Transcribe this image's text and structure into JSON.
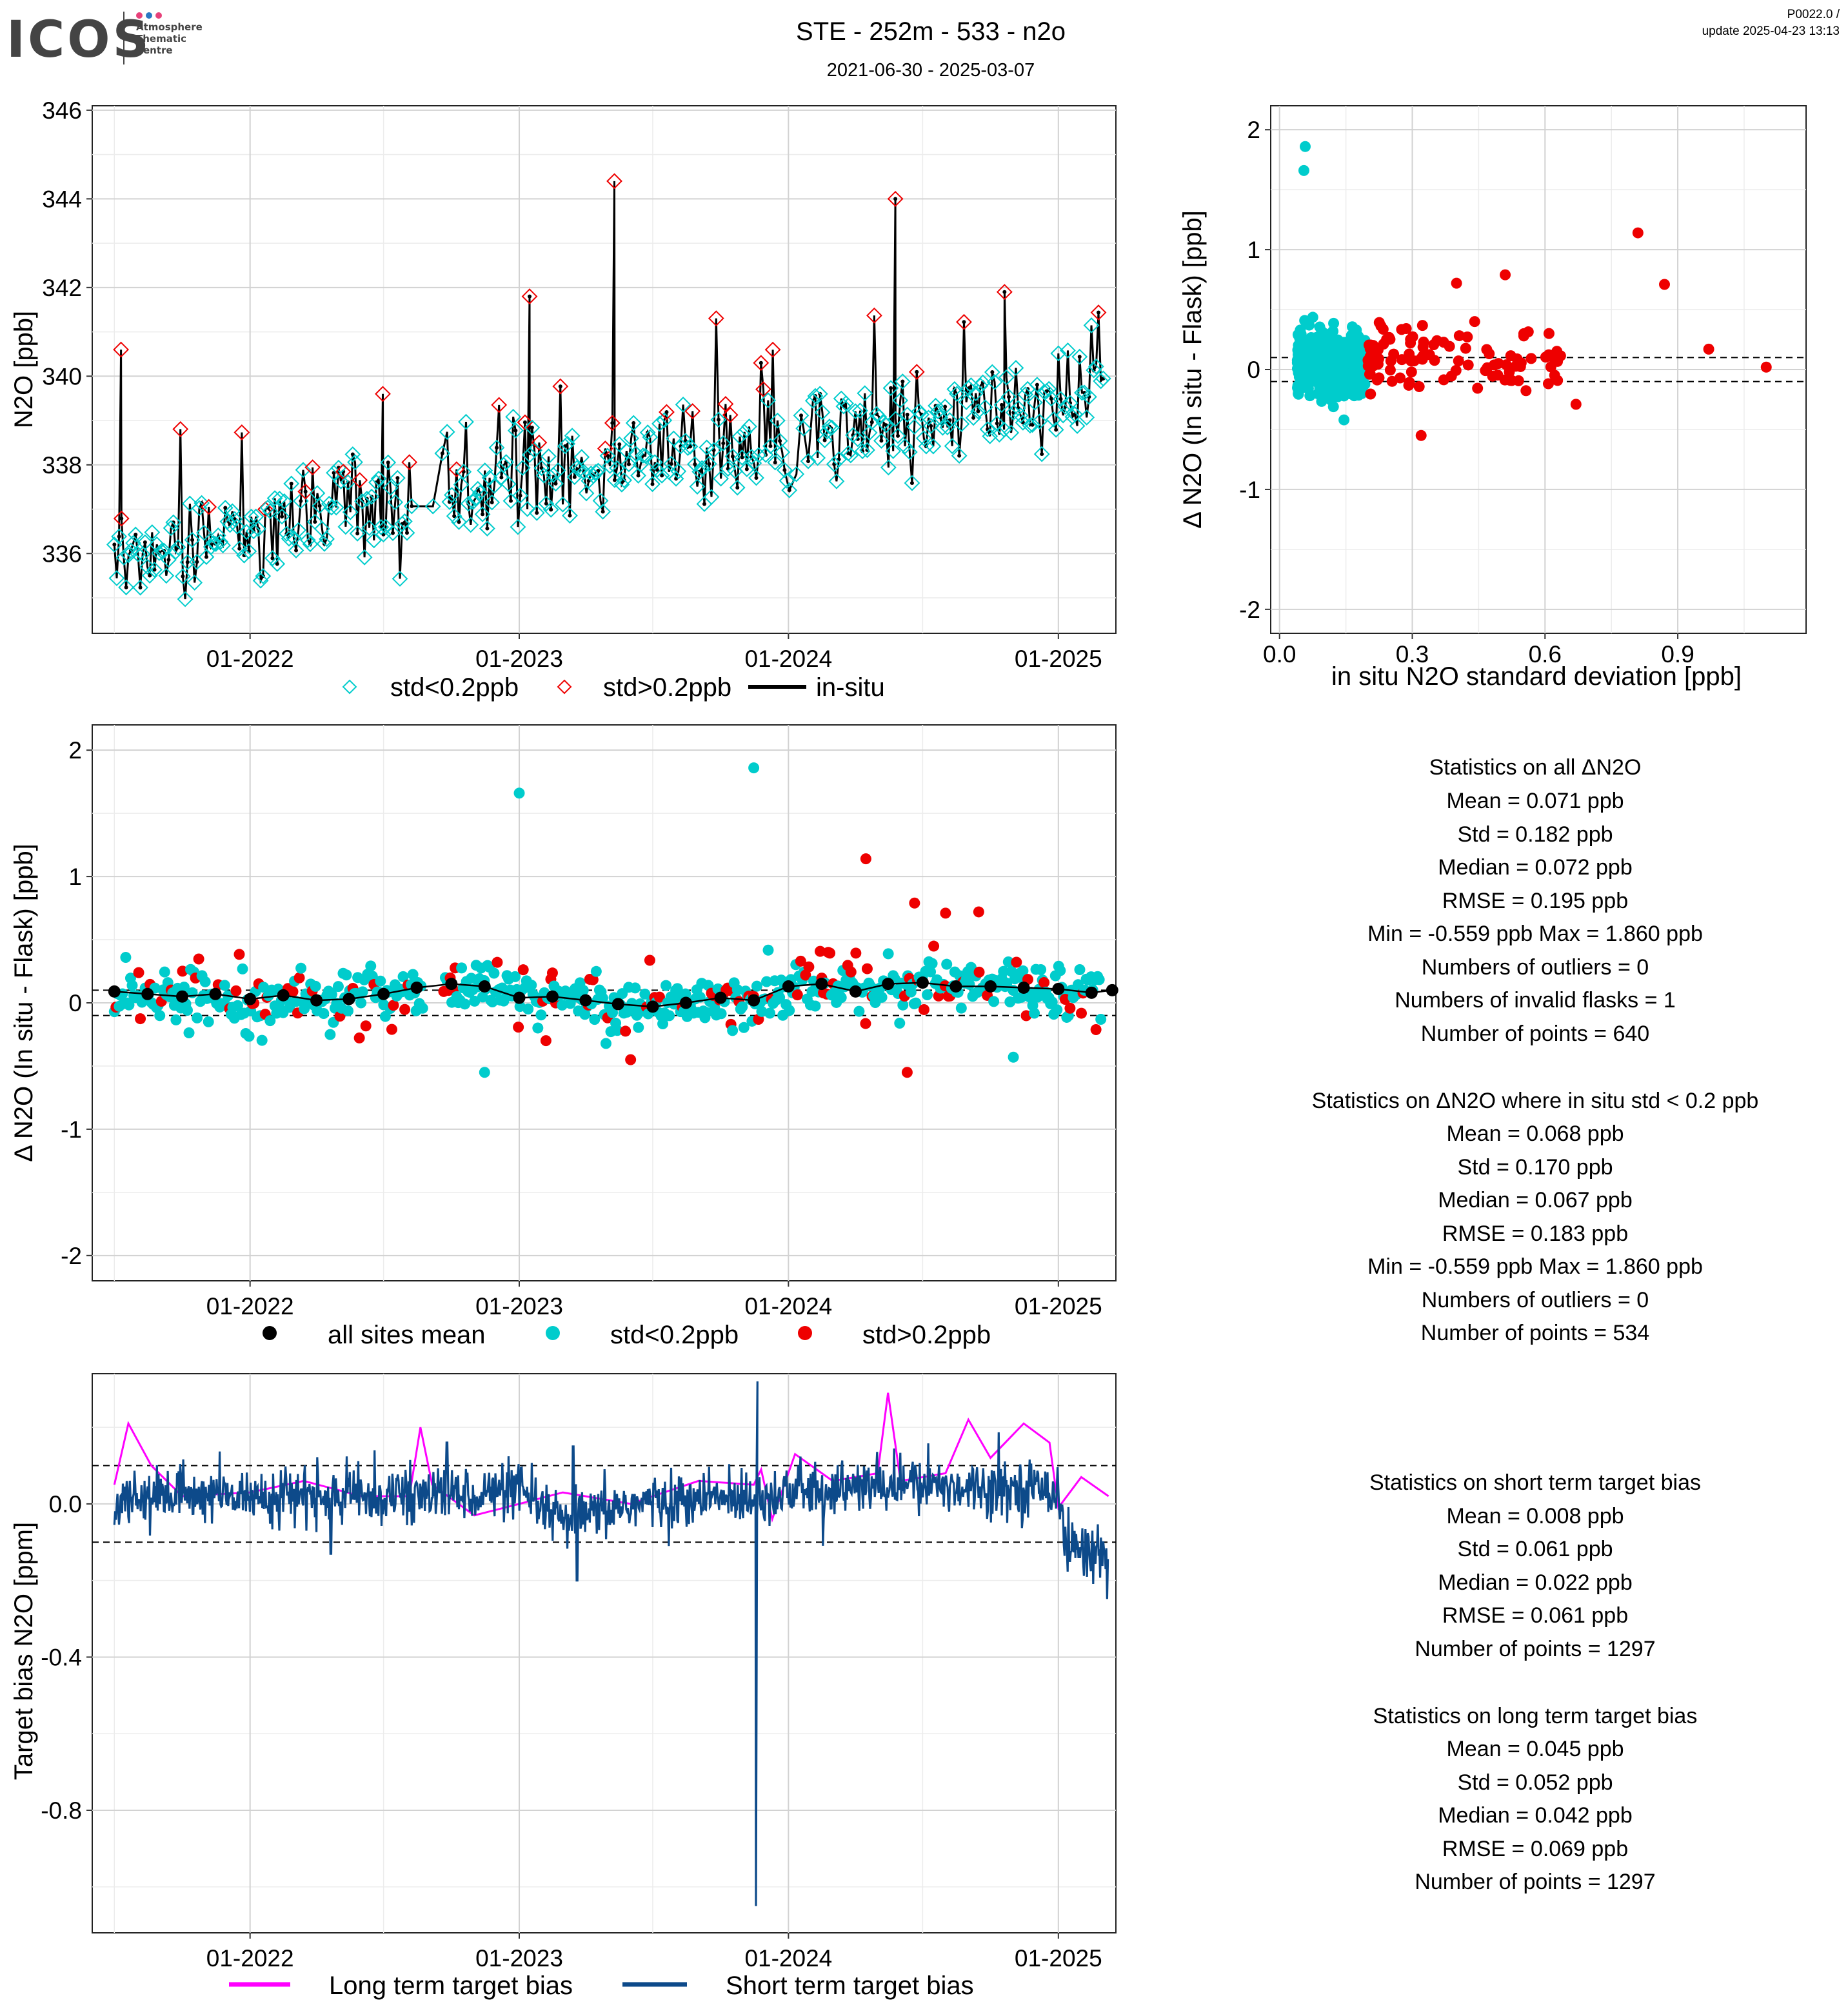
{
  "header": {
    "logo_word": "ICOS",
    "logo_sub": [
      "Atmosphere",
      "Thematic",
      "Centre"
    ],
    "logo_dot_colors": [
      "#e7417a",
      "#2a78c3",
      "#e7417a"
    ],
    "title": "STE - 252m - 533 - n2o",
    "subtitle": "2021-06-30 - 2025-03-07",
    "version": "P0022.0 /",
    "update": "update  2025-04-23 13:13"
  },
  "colors": {
    "low_std": "#00cccc",
    "high_std": "#ee0000",
    "insitu": "#000000",
    "long_term": "#ff00ff",
    "short_term": "#0d4a8a",
    "mean": "#000000"
  },
  "chart_data": [
    {
      "id": "timeseries",
      "type": "scatter",
      "title": "",
      "xlabel": "",
      "ylabel": "N2O [ppb]",
      "x_ticks": [
        "01-2022",
        "01-2023",
        "01-2024",
        "01-2025"
      ],
      "x_range": [
        "2021-06-01",
        "2025-03-20"
      ],
      "y_ticks": [
        "336",
        "338",
        "340",
        "342",
        "344",
        "346"
      ],
      "ylim": [
        334.2,
        346.1
      ],
      "legend": [
        "std<0.2ppb",
        "std>0.2ppb",
        "in-situ"
      ],
      "series_summary": [
        {
          "name": "std<0.2ppb",
          "marker": "open diamond",
          "trend": [
            [
              "2021-07-01",
              336.0
            ],
            [
              "2022-01-01",
              336.6
            ],
            [
              "2022-07-01",
              337.0
            ],
            [
              "2023-01-01",
              337.7
            ],
            [
              "2023-07-01",
              338.0
            ],
            [
              "2024-01-01",
              338.6
            ],
            [
              "2024-07-01",
              339.0
            ],
            [
              "2025-01-01",
              339.5
            ]
          ]
        },
        {
          "name": "std>0.2ppb",
          "marker": "open diamond",
          "notable": [
            [
              "2021-07-10",
              340.6
            ],
            [
              "2022-06-30",
              339.6
            ],
            [
              "2023-01-15",
              341.8
            ],
            [
              "2023-05-10",
              344.4
            ],
            [
              "2024-05-25",
              344.0
            ],
            [
              "2024-10-20",
              341.9
            ]
          ]
        }
      ]
    },
    {
      "id": "scatter_std",
      "type": "scatter",
      "xlabel": "in situ N2O standard deviation [ppb]",
      "ylabel": "Δ N2O (In situ - Flask) [ppb]",
      "x_ticks": [
        "0.0",
        "0.3",
        "0.6",
        "0.9"
      ],
      "xlim": [
        -0.02,
        1.19
      ],
      "y_ticks": [
        "-2",
        "-1",
        "0",
        "1",
        "2"
      ],
      "ylim": [
        -2.2,
        2.2
      ],
      "ref_lines": [
        0.1,
        -0.1
      ],
      "points_highlight": [
        [
          0.058,
          1.86
        ],
        [
          0.055,
          1.66
        ],
        [
          0.81,
          1.14
        ],
        [
          0.87,
          0.71
        ],
        [
          0.51,
          0.79
        ],
        [
          0.4,
          0.72
        ],
        [
          1.1,
          0.02
        ],
        [
          0.97,
          0.17
        ],
        [
          0.67,
          -0.29
        ],
        [
          0.32,
          -0.55
        ]
      ]
    },
    {
      "id": "delta_time",
      "type": "scatter",
      "xlabel": "",
      "ylabel": "Δ N2O (In situ - Flask) [ppb]",
      "x_ticks": [
        "01-2022",
        "01-2023",
        "01-2024",
        "01-2025"
      ],
      "x_range": [
        "2021-06-01",
        "2025-03-20"
      ],
      "y_ticks": [
        "-2",
        "-1",
        "0",
        "1",
        "2"
      ],
      "ylim": [
        -2.2,
        2.2
      ],
      "ref_lines": [
        0.1,
        -0.1
      ],
      "legend": [
        "all sites mean",
        "std<0.2ppb",
        "std>0.2ppb"
      ],
      "mean_series": [
        [
          "2021-07-01",
          0.09
        ],
        [
          "2021-08-15",
          0.07
        ],
        [
          "2021-10-01",
          0.05
        ],
        [
          "2021-11-15",
          0.07
        ],
        [
          "2022-01-01",
          0.03
        ],
        [
          "2022-02-15",
          0.06
        ],
        [
          "2022-04-01",
          0.02
        ],
        [
          "2022-05-15",
          0.03
        ],
        [
          "2022-07-01",
          0.07
        ],
        [
          "2022-08-15",
          0.12
        ],
        [
          "2022-10-01",
          0.15
        ],
        [
          "2022-11-15",
          0.13
        ],
        [
          "2023-01-01",
          0.04
        ],
        [
          "2023-02-15",
          0.05
        ],
        [
          "2023-04-01",
          0.02
        ],
        [
          "2023-05-15",
          -0.01
        ],
        [
          "2023-07-01",
          -0.03
        ],
        [
          "2023-08-15",
          0.0
        ],
        [
          "2023-10-01",
          0.04
        ],
        [
          "2023-11-15",
          0.02
        ],
        [
          "2024-01-01",
          0.13
        ],
        [
          "2024-02-15",
          0.15
        ],
        [
          "2024-04-01",
          0.09
        ],
        [
          "2024-05-15",
          0.15
        ],
        [
          "2024-07-01",
          0.16
        ],
        [
          "2024-08-15",
          0.13
        ],
        [
          "2024-10-01",
          0.13
        ],
        [
          "2024-11-15",
          0.12
        ],
        [
          "2025-01-01",
          0.11
        ],
        [
          "2025-02-15",
          0.08
        ],
        [
          "2025-03-15",
          0.1
        ]
      ],
      "points_highlight": [
        [
          "2023-01-01",
          1.66
        ],
        [
          "2023-11-15",
          1.86
        ],
        [
          "2024-04-15",
          1.14
        ],
        [
          "2024-06-20",
          0.79
        ],
        [
          "2024-08-01",
          0.71
        ],
        [
          "2024-09-15",
          0.72
        ],
        [
          "2022-11-15",
          -0.55
        ],
        [
          "2023-06-01",
          -0.45
        ],
        [
          "2024-06-10",
          -0.55
        ],
        [
          "2024-11-01",
          -0.43
        ]
      ]
    },
    {
      "id": "target_bias",
      "type": "line",
      "xlabel": "",
      "ylabel": "Target bias N2O [ppm]",
      "x_ticks": [
        "01-2022",
        "01-2023",
        "01-2024",
        "01-2025"
      ],
      "x_range": [
        "2021-06-01",
        "2025-03-20"
      ],
      "y_ticks": [
        "-0.8",
        "-0.4",
        "0.0"
      ],
      "ylim": [
        -1.12,
        0.34
      ],
      "ref_lines": [
        0.1,
        -0.1
      ],
      "legend": [
        "Long term target bias",
        "Short term target bias"
      ],
      "long_term": [
        [
          "2021-07-01",
          0.05
        ],
        [
          "2021-07-20",
          0.21
        ],
        [
          "2021-08-20",
          0.1
        ],
        [
          "2021-10-01",
          0.02
        ],
        [
          "2022-01-01",
          0.03
        ],
        [
          "2022-03-15",
          0.06
        ],
        [
          "2022-06-01",
          0.02
        ],
        [
          "2022-08-05",
          0.02
        ],
        [
          "2022-08-20",
          0.2
        ],
        [
          "2022-09-05",
          0.05
        ],
        [
          "2022-11-01",
          -0.03
        ],
        [
          "2023-01-01",
          0.0
        ],
        [
          "2023-03-01",
          0.03
        ],
        [
          "2023-06-01",
          0.0
        ],
        [
          "2023-07-01",
          0.02
        ],
        [
          "2023-09-01",
          0.06
        ],
        [
          "2023-11-15",
          0.05
        ],
        [
          "2023-11-25",
          0.09
        ],
        [
          "2023-12-10",
          -0.04
        ],
        [
          "2024-01-10",
          0.13
        ],
        [
          "2024-03-01",
          0.06
        ],
        [
          "2024-05-01",
          0.08
        ],
        [
          "2024-05-15",
          0.29
        ],
        [
          "2024-06-01",
          0.06
        ],
        [
          "2024-08-01",
          0.08
        ],
        [
          "2024-09-01",
          0.22
        ],
        [
          "2024-10-01",
          0.12
        ],
        [
          "2024-11-15",
          0.21
        ],
        [
          "2024-12-20",
          0.16
        ],
        [
          "2025-01-01",
          -0.01
        ],
        [
          "2025-02-01",
          0.07
        ],
        [
          "2025-03-10",
          0.02
        ]
      ],
      "short_term_summary": [
        [
          "2021-07-01",
          0.02
        ],
        [
          "2022-06-01",
          0.02
        ],
        [
          "2023-01-01",
          0.03
        ],
        [
          "2023-03-01",
          -0.05
        ],
        [
          "2023-06-01",
          0.0
        ],
        [
          "2023-11-15",
          0.02
        ],
        [
          "2023-11-18",
          -1.05
        ],
        [
          "2023-11-20",
          0.32
        ],
        [
          "2024-01-01",
          0.03
        ],
        [
          "2024-06-01",
          0.05
        ],
        [
          "2025-01-01",
          0.04
        ],
        [
          "2025-01-10",
          -0.11
        ],
        [
          "2025-03-10",
          -0.13
        ]
      ]
    }
  ],
  "stats_all": {
    "title": "Statistics on all ΔN2O",
    "lines": [
      "Mean =  0.071 ppb",
      "Std =  0.182 ppb",
      "Median =  0.072 ppb",
      "RMSE =  0.195 ppb",
      "Min =  -0.559 ppb Max =  1.860 ppb",
      "Numbers of outliers =  0",
      "Numbers of invalid flasks =  1",
      "Number of points =  640"
    ]
  },
  "stats_low": {
    "title": "Statistics on ΔN2O where in situ std < 0.2 ppb",
    "lines": [
      "Mean =  0.068 ppb",
      "Std =  0.170 ppb",
      "Median =  0.067 ppb",
      "RMSE =  0.183 ppb",
      "Min =  -0.559 ppb Max =  1.860 ppb",
      "Numbers of outliers =  0",
      "Number of points =  534"
    ]
  },
  "stats_short": {
    "title": "Statistics on short term target bias",
    "lines": [
      "Mean =  0.008 ppb",
      "Std =  0.061 ppb",
      "Median =  0.022 ppb",
      "RMSE =  0.061 ppb",
      "Number of points =  1297"
    ]
  },
  "stats_long": {
    "title": "Statistics on long term target bias",
    "lines": [
      "Mean =  0.045 ppb",
      "Std =  0.052 ppb",
      "Median =  0.042 ppb",
      "RMSE =  0.069 ppb",
      "Number of points =  1297"
    ]
  }
}
